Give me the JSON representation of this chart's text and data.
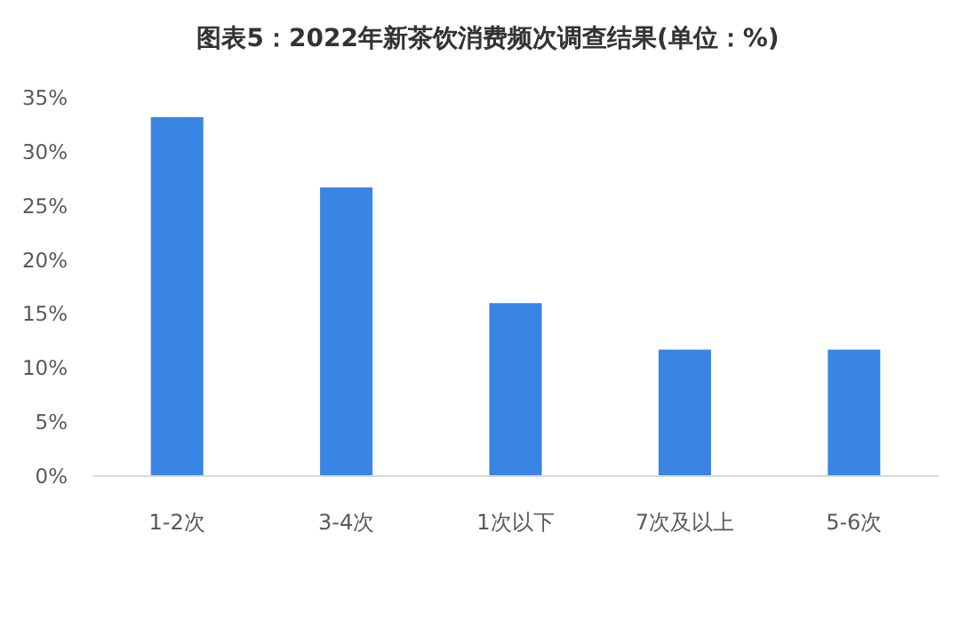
{
  "chart_data": {
    "type": "bar",
    "title": "图表5：2022年新茶饮消费频次调查结果(单位：%)",
    "categories": [
      "1-2次",
      "3-4次",
      "1次以下",
      "7次及以上",
      "5-6次"
    ],
    "values": [
      33.2,
      26.7,
      16.0,
      11.7,
      11.7
    ],
    "color": "#3a84e3",
    "ylim": [
      0,
      35
    ],
    "yticks": [
      {
        "value": 0,
        "label": "0%"
      },
      {
        "value": 5,
        "label": "5%"
      },
      {
        "value": 10,
        "label": "10%"
      },
      {
        "value": 15,
        "label": "15%"
      },
      {
        "value": 20,
        "label": "20%"
      },
      {
        "value": 25,
        "label": "25%"
      },
      {
        "value": 30,
        "label": "30%"
      },
      {
        "value": 35,
        "label": "35%"
      }
    ],
    "grid": false,
    "legend": false
  }
}
